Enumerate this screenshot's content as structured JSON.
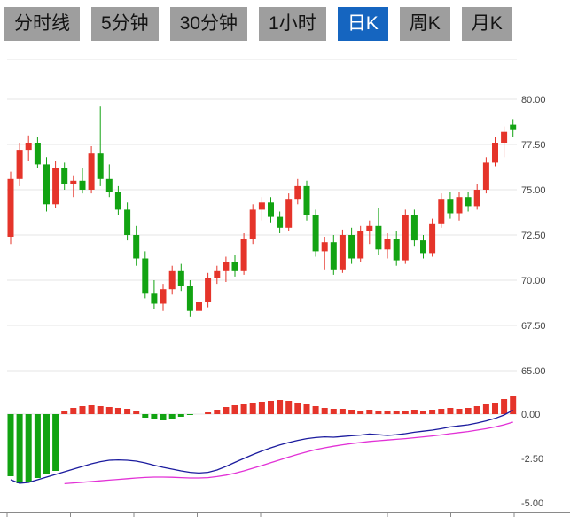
{
  "tabs": {
    "items": [
      {
        "label": "分时线",
        "active": false
      },
      {
        "label": "5分钟",
        "active": false
      },
      {
        "label": "30分钟",
        "active": false
      },
      {
        "label": "1小时",
        "active": false
      },
      {
        "label": "日K",
        "active": true
      },
      {
        "label": "周K",
        "active": false
      },
      {
        "label": "月K",
        "active": false
      }
    ],
    "active_bg": "#1565c0",
    "active_text": "#ffffff",
    "inactive_bg": "#9e9e9e",
    "inactive_text": "#141414"
  },
  "chart_data": {
    "type": "candlestick",
    "title": "",
    "legend_position": "none",
    "grid": true,
    "price_axis": {
      "side": "right",
      "ticks": [
        80.0,
        77.5,
        75.0,
        72.5,
        70.0,
        67.5,
        65.0
      ],
      "labels": [
        "80.00",
        "77.50",
        "75.00",
        "72.50",
        "70.00",
        "67.50",
        "65.00"
      ],
      "range": [
        63.5,
        82.2
      ]
    },
    "macd_axis": {
      "side": "right",
      "ticks": [
        0.0,
        -2.5,
        -5.0
      ],
      "labels": [
        "0.00",
        "-2.50",
        "-5.00"
      ],
      "range": [
        1.5,
        -5.8
      ]
    },
    "colors": {
      "up": "#e5342a",
      "down": "#12a312",
      "dif_line": "#1b1b9e",
      "dea_line": "#e231d6",
      "grid": "#e4e4e4",
      "axis": "#8a8a8a",
      "label": "#444444",
      "background": "#ffffff"
    },
    "candles_format": [
      "open",
      "high",
      "low",
      "close"
    ],
    "candles": [
      [
        72.4,
        76.0,
        72.0,
        75.6
      ],
      [
        75.6,
        77.6,
        75.2,
        77.2
      ],
      [
        77.2,
        78.0,
        76.6,
        77.6
      ],
      [
        77.6,
        77.9,
        76.2,
        76.4
      ],
      [
        76.4,
        76.8,
        73.8,
        74.2
      ],
      [
        74.2,
        76.6,
        74.0,
        76.2
      ],
      [
        76.2,
        76.5,
        75.0,
        75.3
      ],
      [
        75.3,
        75.8,
        74.6,
        75.5
      ],
      [
        75.5,
        76.2,
        74.8,
        75.0
      ],
      [
        75.0,
        77.4,
        74.8,
        77.0
      ],
      [
        77.0,
        79.6,
        75.2,
        75.6
      ],
      [
        75.6,
        76.4,
        74.6,
        74.9
      ],
      [
        74.9,
        75.2,
        73.6,
        73.9
      ],
      [
        73.9,
        74.3,
        72.2,
        72.5
      ],
      [
        72.5,
        73.0,
        70.8,
        71.2
      ],
      [
        71.2,
        71.6,
        69.0,
        69.3
      ],
      [
        69.3,
        70.0,
        68.4,
        68.7
      ],
      [
        68.7,
        69.8,
        68.3,
        69.5
      ],
      [
        69.5,
        70.8,
        69.2,
        70.5
      ],
      [
        70.5,
        70.9,
        69.4,
        69.7
      ],
      [
        69.7,
        70.0,
        68.0,
        68.3
      ],
      [
        68.3,
        69.0,
        67.3,
        68.8
      ],
      [
        68.8,
        70.4,
        68.5,
        70.1
      ],
      [
        70.1,
        70.8,
        69.8,
        70.5
      ],
      [
        70.5,
        71.3,
        69.9,
        71.0
      ],
      [
        71.0,
        71.4,
        70.2,
        70.5
      ],
      [
        70.5,
        72.6,
        70.3,
        72.3
      ],
      [
        72.3,
        74.2,
        72.0,
        73.9
      ],
      [
        73.9,
        74.6,
        73.3,
        74.3
      ],
      [
        74.3,
        74.6,
        73.2,
        73.5
      ],
      [
        73.5,
        73.8,
        72.6,
        72.9
      ],
      [
        72.9,
        74.8,
        72.7,
        74.5
      ],
      [
        74.5,
        75.6,
        74.2,
        75.2
      ],
      [
        75.2,
        75.5,
        73.3,
        73.6
      ],
      [
        73.6,
        73.9,
        71.3,
        71.6
      ],
      [
        71.6,
        72.4,
        70.6,
        72.1
      ],
      [
        72.1,
        72.5,
        70.3,
        70.6
      ],
      [
        70.6,
        72.8,
        70.4,
        72.5
      ],
      [
        72.5,
        72.9,
        70.9,
        71.2
      ],
      [
        71.2,
        73.0,
        71.0,
        72.7
      ],
      [
        72.7,
        73.3,
        72.0,
        73.0
      ],
      [
        73.0,
        74.0,
        71.4,
        71.7
      ],
      [
        71.7,
        72.6,
        71.2,
        72.3
      ],
      [
        72.3,
        72.7,
        70.8,
        71.1
      ],
      [
        71.1,
        73.9,
        70.9,
        73.6
      ],
      [
        73.6,
        73.9,
        71.9,
        72.2
      ],
      [
        72.2,
        72.5,
        71.2,
        71.5
      ],
      [
        71.5,
        73.4,
        71.3,
        73.1
      ],
      [
        73.1,
        74.8,
        72.9,
        74.5
      ],
      [
        74.5,
        74.9,
        73.4,
        73.7
      ],
      [
        73.7,
        74.9,
        73.3,
        74.6
      ],
      [
        74.6,
        74.9,
        73.8,
        74.1
      ],
      [
        74.1,
        75.3,
        73.9,
        75.0
      ],
      [
        75.0,
        76.8,
        74.8,
        76.5
      ],
      [
        76.5,
        77.9,
        76.3,
        77.6
      ],
      [
        77.6,
        78.5,
        76.8,
        78.2
      ],
      [
        78.6,
        78.9,
        77.9,
        78.3
      ]
    ],
    "macd": {
      "histogram": [
        -3.5,
        -3.9,
        -3.8,
        -3.6,
        -3.4,
        -3.2,
        0.15,
        0.35,
        0.45,
        0.5,
        0.45,
        0.4,
        0.35,
        0.3,
        0.2,
        -0.2,
        -0.3,
        -0.35,
        -0.3,
        -0.15,
        -0.05,
        0.0,
        0.1,
        0.25,
        0.4,
        0.5,
        0.55,
        0.6,
        0.7,
        0.75,
        0.8,
        0.75,
        0.65,
        0.55,
        0.45,
        0.35,
        0.3,
        0.3,
        0.25,
        0.2,
        0.25,
        0.2,
        0.15,
        0.15,
        0.2,
        0.25,
        0.2,
        0.25,
        0.3,
        0.35,
        0.3,
        0.35,
        0.45,
        0.55,
        0.65,
        0.85,
        1.05
      ],
      "dif": [
        -3.7,
        -3.9,
        -3.85,
        -3.7,
        -3.55,
        -3.4,
        -3.25,
        -3.1,
        -2.95,
        -2.8,
        -2.68,
        -2.6,
        -2.58,
        -2.6,
        -2.65,
        -2.75,
        -2.88,
        -3.0,
        -3.1,
        -3.2,
        -3.28,
        -3.32,
        -3.28,
        -3.15,
        -2.95,
        -2.72,
        -2.5,
        -2.28,
        -2.08,
        -1.9,
        -1.74,
        -1.6,
        -1.48,
        -1.38,
        -1.32,
        -1.28,
        -1.3,
        -1.26,
        -1.22,
        -1.18,
        -1.12,
        -1.16,
        -1.2,
        -1.16,
        -1.1,
        -1.02,
        -0.96,
        -0.9,
        -0.82,
        -0.72,
        -0.66,
        -0.6,
        -0.5,
        -0.38,
        -0.24,
        -0.05,
        0.22
      ],
      "dea": [
        null,
        null,
        null,
        null,
        null,
        null,
        -3.92,
        -3.88,
        -3.84,
        -3.8,
        -3.76,
        -3.72,
        -3.68,
        -3.64,
        -3.6,
        -3.57,
        -3.55,
        -3.55,
        -3.56,
        -3.58,
        -3.6,
        -3.6,
        -3.58,
        -3.52,
        -3.44,
        -3.33,
        -3.2,
        -3.05,
        -2.9,
        -2.74,
        -2.58,
        -2.42,
        -2.27,
        -2.13,
        -2.0,
        -1.9,
        -1.81,
        -1.73,
        -1.66,
        -1.6,
        -1.54,
        -1.5,
        -1.46,
        -1.42,
        -1.38,
        -1.33,
        -1.28,
        -1.23,
        -1.17,
        -1.1,
        -1.04,
        -0.98,
        -0.9,
        -0.82,
        -0.72,
        -0.6,
        -0.45
      ]
    }
  }
}
